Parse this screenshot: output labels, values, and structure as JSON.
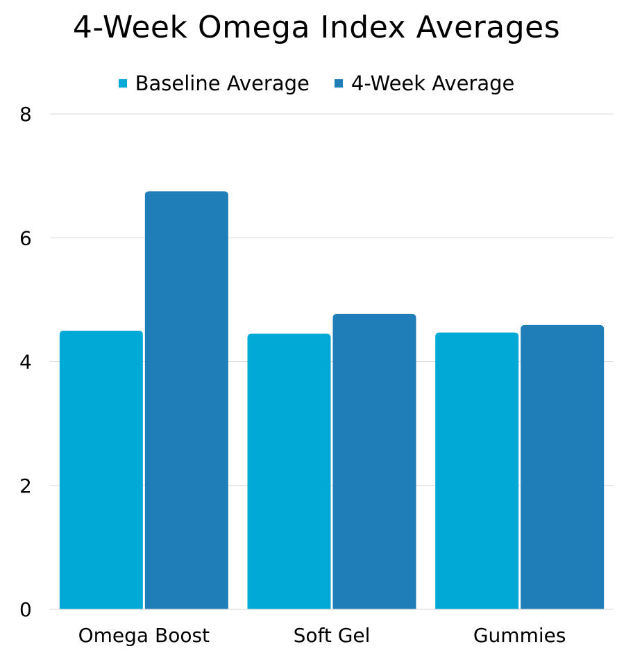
{
  "chart_data": {
    "type": "bar",
    "title": "4-Week Omega Index Averages",
    "categories": [
      "Omega Boost",
      "Soft Gel",
      "Gummies"
    ],
    "series": [
      {
        "name": "Baseline Average",
        "color": "#00A9D6",
        "values": [
          4.5,
          4.45,
          4.47
        ]
      },
      {
        "name": "4-Week Average",
        "color": "#1F7EB8",
        "values": [
          6.75,
          4.77,
          4.59
        ]
      }
    ],
    "ylim": [
      0,
      8
    ],
    "yticks": [
      "0",
      "2",
      "4",
      "6",
      "8"
    ],
    "grid": true,
    "legend_placement": "top"
  }
}
